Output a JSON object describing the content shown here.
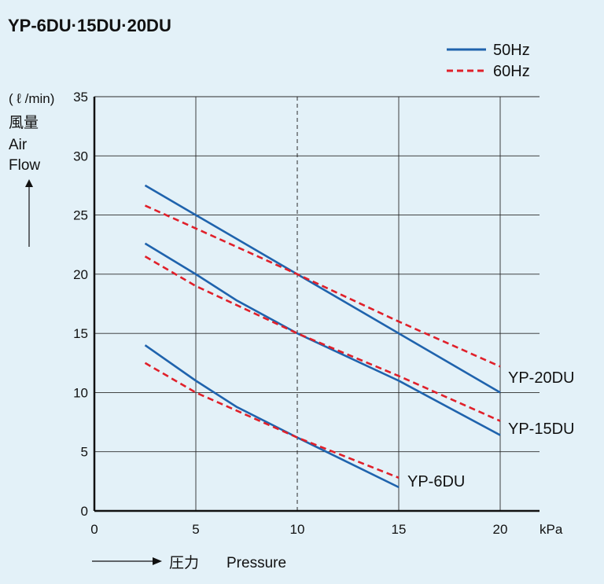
{
  "chart_data": {
    "type": "line",
    "title": "YP-6DU·15DU·20DU",
    "xlabel": "Pressure",
    "xlabel_ja": "圧力",
    "xunit": "kPa",
    "ylabel_unit": "( ℓ /min)",
    "ylabel_ja": "風量",
    "ylabel_en_1": "Air",
    "ylabel_en_2": "Flow",
    "xlim": [
      0,
      20
    ],
    "ylim": [
      0,
      35
    ],
    "xticks": [
      0,
      5,
      10,
      15,
      20
    ],
    "yticks": [
      0,
      5,
      10,
      15,
      20,
      25,
      30,
      35
    ],
    "reference_x": 10,
    "legend": [
      {
        "label": "50Hz",
        "style": "solid",
        "color": "#1f63ad"
      },
      {
        "label": "60Hz",
        "style": "dashed",
        "color": "#e0202a"
      }
    ],
    "models": [
      "YP-20DU",
      "YP-15DU",
      "YP-6DU"
    ],
    "series": [
      {
        "name": "YP-20DU 50Hz",
        "freq": "50Hz",
        "x": [
          2.5,
          5,
          10,
          15,
          20
        ],
        "y": [
          27.5,
          25,
          20,
          15,
          10
        ]
      },
      {
        "name": "YP-20DU 60Hz",
        "freq": "60Hz",
        "x": [
          2.5,
          10,
          15,
          20
        ],
        "y": [
          25.8,
          20,
          16,
          12.2
        ]
      },
      {
        "name": "YP-15DU 50Hz",
        "freq": "50Hz",
        "x": [
          2.5,
          5,
          7,
          10,
          15,
          20
        ],
        "y": [
          22.6,
          20,
          17.8,
          15,
          11,
          6.4
        ]
      },
      {
        "name": "YP-15DU 60Hz",
        "freq": "60Hz",
        "x": [
          2.5,
          5,
          10,
          15,
          20
        ],
        "y": [
          21.5,
          19,
          15,
          11.4,
          7.6
        ]
      },
      {
        "name": "YP-6DU 50Hz",
        "freq": "50Hz",
        "x": [
          2.5,
          5,
          7,
          10,
          15
        ],
        "y": [
          14,
          11,
          8.8,
          6.2,
          2
        ]
      },
      {
        "name": "YP-6DU 60Hz",
        "freq": "60Hz",
        "x": [
          2.5,
          5,
          10,
          15
        ],
        "y": [
          12.5,
          10,
          6.2,
          2.8
        ]
      }
    ]
  }
}
